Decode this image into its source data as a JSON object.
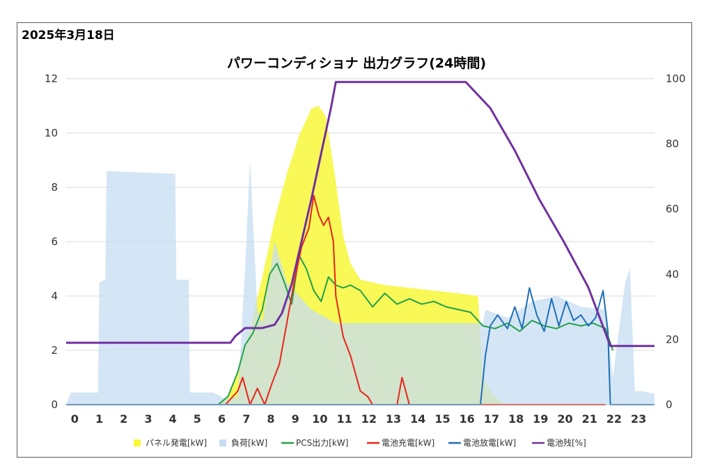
{
  "date": "2025年3月18日",
  "title": "パワーコンディショナ 出力グラフ(24時間)",
  "chart_data": {
    "type": "line",
    "title": "パワーコンディショナ 出力グラフ(24時間)",
    "xlabel": "",
    "ylabel": "",
    "x_ticks": [
      "0",
      "1",
      "2",
      "3",
      "4",
      "5",
      "6",
      "7",
      "8",
      "9",
      "10",
      "11",
      "12",
      "13",
      "14",
      "15",
      "16",
      "17",
      "18",
      "19",
      "20",
      "21",
      "22",
      "23"
    ],
    "xlim": [
      0,
      24
    ],
    "ylim_left": [
      0,
      12
    ],
    "y_ticks_left": [
      "0",
      "2",
      "4",
      "6",
      "8",
      "10",
      "12"
    ],
    "ylim_right": [
      0,
      100
    ],
    "y_ticks_right": [
      "0",
      "20",
      "40",
      "60",
      "80",
      "100"
    ],
    "legend_position": "bottom",
    "grid": true,
    "series": [
      {
        "name": "パネル発電[kW]",
        "type": "area",
        "axis": "left",
        "color": "#f7f73a",
        "x": [
          0,
          6.2,
          6.6,
          7,
          7.5,
          8,
          8.5,
          9,
          9.5,
          10,
          10.3,
          10.6,
          11,
          11.3,
          11.6,
          12,
          13,
          14,
          15,
          16,
          16.8,
          17,
          17.3,
          17.6,
          18,
          24
        ],
        "y": [
          0,
          0,
          0.3,
          1.2,
          2.8,
          4.7,
          6.8,
          8.5,
          9.9,
          10.9,
          11.0,
          10.6,
          8.2,
          6.2,
          5.2,
          4.6,
          4.4,
          4.3,
          4.2,
          4.1,
          4.0,
          1.0,
          0.5,
          0.2,
          0,
          0
        ]
      },
      {
        "name": "負荷[kW]",
        "type": "area",
        "axis": "left",
        "color": "#c5ddf2",
        "x": [
          0,
          0.2,
          1.3,
          1.35,
          1.6,
          1.65,
          4.45,
          4.5,
          5.0,
          5.05,
          6.0,
          6.5,
          7.0,
          7.3,
          7.5,
          7.8,
          8.0,
          8.5,
          9.0,
          9.5,
          10.0,
          11.0,
          12.0,
          13.0,
          14.0,
          15.0,
          16.0,
          17.0,
          17.1,
          18.0,
          19.0,
          20.0,
          21.0,
          22.0,
          22.3,
          22.8,
          23.0,
          23.2,
          23.5,
          24.0
        ],
        "y": [
          0,
          0.45,
          0.45,
          4.5,
          4.6,
          8.6,
          8.5,
          4.6,
          4.6,
          0.45,
          0.45,
          0.2,
          0.3,
          5.0,
          9.0,
          3.5,
          3.0,
          6.0,
          4.5,
          4.0,
          3.5,
          3.0,
          3.0,
          3.0,
          3.0,
          3.0,
          3.0,
          3.0,
          3.5,
          3.2,
          3.8,
          4.0,
          3.6,
          3.5,
          1.0,
          4.5,
          5.0,
          0.5,
          0.5,
          0.4
        ]
      },
      {
        "name": "PCS出力[kW]",
        "type": "line",
        "axis": "left",
        "color": "#22a04b",
        "x": [
          6.2,
          6.6,
          7.0,
          7.3,
          7.6,
          8.0,
          8.3,
          8.6,
          8.9,
          9.2,
          9.5,
          9.8,
          10.1,
          10.4,
          10.7,
          11.0,
          11.3,
          11.6,
          12.0,
          12.5,
          13.0,
          13.5,
          14.0,
          14.5,
          15.0,
          15.5,
          16.0,
          16.5,
          17.0,
          17.5,
          18.0,
          18.5,
          19.0,
          19.5,
          20.0,
          20.5,
          21.0,
          21.5,
          22.0,
          22.3
        ],
        "y": [
          0,
          0.3,
          1.2,
          2.2,
          2.6,
          3.5,
          4.8,
          5.2,
          4.5,
          3.7,
          5.5,
          5.0,
          4.2,
          3.8,
          4.7,
          4.4,
          4.3,
          4.4,
          4.2,
          3.6,
          4.1,
          3.7,
          3.9,
          3.7,
          3.8,
          3.6,
          3.5,
          3.4,
          2.9,
          2.8,
          3.0,
          2.7,
          3.1,
          2.9,
          2.8,
          3.0,
          2.9,
          3.0,
          2.8,
          2.0
        ]
      },
      {
        "name": "電池充電[kW]",
        "type": "line",
        "axis": "left",
        "color": "#e8231b",
        "x": [
          6.5,
          7.0,
          7.2,
          7.5,
          7.8,
          8.1,
          8.4,
          8.7,
          9.0,
          9.3,
          9.6,
          9.9,
          10.1,
          10.3,
          10.5,
          10.7,
          10.9,
          11.0,
          11.3,
          11.6,
          12.0,
          12.3,
          12.5,
          13.0,
          13.5,
          13.7,
          14.0,
          17.0,
          22.0
        ],
        "y": [
          0,
          0.5,
          1.0,
          0,
          0.6,
          0,
          0.8,
          1.5,
          3.0,
          4.5,
          5.8,
          6.5,
          7.7,
          7.0,
          6.6,
          6.9,
          6.0,
          4.0,
          2.5,
          1.8,
          0.5,
          0.3,
          0,
          0,
          0,
          1.0,
          0,
          0,
          0
        ]
      },
      {
        "name": "電池放電[kW]",
        "type": "line",
        "axis": "left",
        "color": "#1f6fb8",
        "x": [
          0,
          16.9,
          17.1,
          17.3,
          17.6,
          18.0,
          18.3,
          18.6,
          18.9,
          19.2,
          19.5,
          19.8,
          20.1,
          20.4,
          20.7,
          21.0,
          21.3,
          21.6,
          21.9,
          22.1,
          22.2,
          24.0
        ],
        "y": [
          0,
          0,
          1.8,
          2.9,
          3.3,
          2.8,
          3.6,
          2.8,
          4.3,
          3.3,
          2.7,
          3.9,
          2.9,
          3.8,
          3.1,
          3.3,
          2.9,
          3.2,
          4.2,
          2.7,
          0,
          0
        ]
      },
      {
        "name": "電池残[%]",
        "type": "line",
        "axis": "right",
        "color": "#7030a0",
        "x": [
          0,
          6.7,
          6.9,
          7.3,
          8.0,
          8.5,
          8.8,
          9.2,
          9.6,
          10.0,
          10.4,
          10.8,
          11.0,
          13.0,
          16.3,
          17.3,
          18.3,
          19.3,
          20.3,
          21.3,
          22.2,
          24.0
        ],
        "y": [
          19,
          19,
          21,
          23.5,
          23.5,
          24.5,
          28,
          37,
          50,
          63,
          77,
          91,
          99,
          99,
          99,
          91,
          78,
          63,
          50,
          36,
          18,
          18
        ]
      }
    ]
  }
}
